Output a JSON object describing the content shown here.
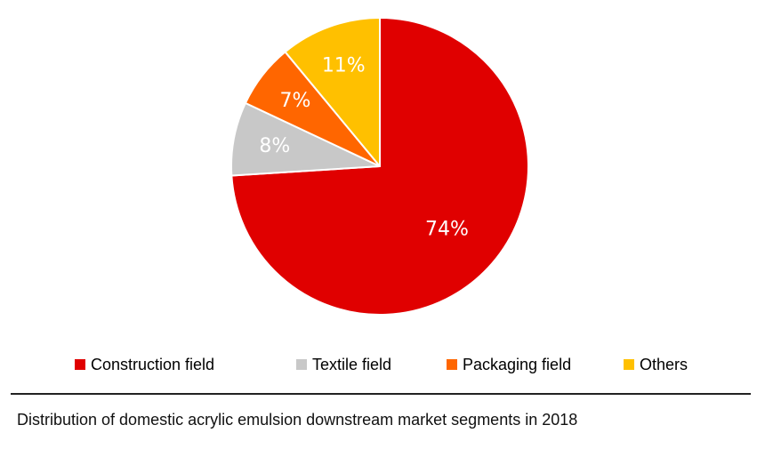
{
  "chart_data": {
    "type": "pie",
    "categories": [
      "Construction field",
      "Textile field",
      "Packaging field",
      "Others"
    ],
    "values": [
      74,
      8,
      7,
      11
    ],
    "value_labels": [
      "74%",
      "8%",
      "7%",
      "11%"
    ],
    "colors": [
      "#e00000",
      "#c8c8c8",
      "#ff6600",
      "#ffc000"
    ],
    "start_angle_deg": 0,
    "direction": "clockwise",
    "legend_placement": "bottom"
  },
  "legend": {
    "items": [
      {
        "label": "Construction field",
        "color": "#e00000"
      },
      {
        "label": "Textile field",
        "color": "#c8c8c8"
      },
      {
        "label": "Packaging field",
        "color": "#ff6600"
      },
      {
        "label": "Others",
        "color": "#ffc000"
      }
    ]
  },
  "caption": "Distribution of domestic acrylic emulsion downstream market segments in 2018"
}
